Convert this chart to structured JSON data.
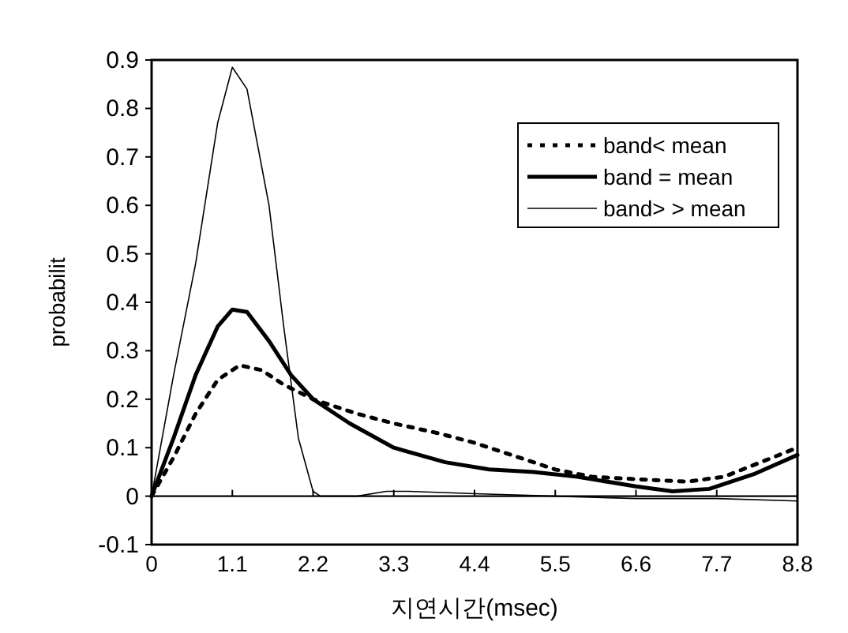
{
  "chart_data": {
    "type": "line",
    "xlabel": "지연시간(msec)",
    "ylabel": "probabilit",
    "xlim": [
      0,
      8.8
    ],
    "xticks": [
      0,
      1.1,
      2.2,
      3.3,
      4.4,
      5.5,
      6.6,
      7.7,
      8.8
    ],
    "ylim": [
      -0.1,
      0.9
    ],
    "yticks": [
      -0.1,
      0,
      0.1,
      0.2,
      0.3,
      0.4,
      0.5,
      0.6,
      0.7,
      0.8,
      0.9
    ],
    "ref_lines": [
      {
        "axis": "y",
        "value": 0,
        "label": null,
        "color": "#000000",
        "line_style": "solid"
      }
    ],
    "legend": "top right",
    "grid": false,
    "series": [
      {
        "name": "band< mean",
        "color": "#000000",
        "line_style": "dotted",
        "x": [
          0,
          0.3,
          0.6,
          0.9,
          1.2,
          1.5,
          1.8,
          2.2,
          2.8,
          3.3,
          3.9,
          4.4,
          5.0,
          5.5,
          6.0,
          6.6,
          7.3,
          7.8,
          8.3,
          8.8
        ],
        "values": [
          0,
          0.08,
          0.17,
          0.24,
          0.27,
          0.26,
          0.23,
          0.2,
          0.17,
          0.15,
          0.13,
          0.11,
          0.08,
          0.055,
          0.04,
          0.035,
          0.03,
          0.04,
          0.07,
          0.1
        ]
      },
      {
        "name": "band = mean",
        "color": "#000000",
        "line_style": "solid",
        "x": [
          0,
          0.3,
          0.6,
          0.9,
          1.1,
          1.3,
          1.6,
          1.9,
          2.2,
          2.7,
          3.3,
          4.0,
          4.6,
          5.2,
          5.8,
          6.6,
          7.1,
          7.6,
          8.2,
          8.8
        ],
        "values": [
          0,
          0.12,
          0.25,
          0.35,
          0.385,
          0.38,
          0.32,
          0.25,
          0.2,
          0.15,
          0.1,
          0.07,
          0.055,
          0.05,
          0.04,
          0.02,
          0.01,
          0.015,
          0.045,
          0.085
        ]
      },
      {
        "name": "band> > mean",
        "color": "#000000",
        "line_style": "solid",
        "x": [
          0,
          0.3,
          0.6,
          0.9,
          1.1,
          1.3,
          1.6,
          1.8,
          2.0,
          2.2,
          2.3,
          2.8,
          3.2,
          3.5,
          4.4,
          5.5,
          6.6,
          7.7,
          8.8
        ],
        "values": [
          0,
          0.25,
          0.48,
          0.77,
          0.885,
          0.84,
          0.6,
          0.35,
          0.12,
          0.01,
          0,
          0,
          0.01,
          0.01,
          0.005,
          0,
          -0.005,
          -0.005,
          -0.01
        ]
      }
    ]
  }
}
